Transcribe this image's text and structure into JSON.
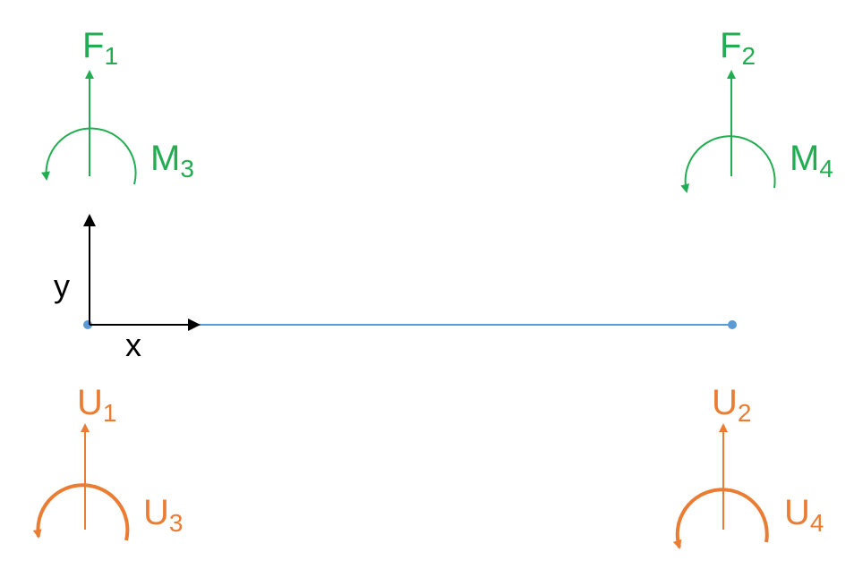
{
  "colors": {
    "force": "#22ad52",
    "displacement": "#ea7d33",
    "beam": "#5b9bd5",
    "axis": "#000000",
    "background": "#ffffff"
  },
  "axes": {
    "x_label": "x",
    "y_label": "y"
  },
  "labels": {
    "F1": {
      "base": "F",
      "sub": "1"
    },
    "F2": {
      "base": "F",
      "sub": "2"
    },
    "M3": {
      "base": "M",
      "sub": "3"
    },
    "M4": {
      "base": "M",
      "sub": "4"
    },
    "U1": {
      "base": "U",
      "sub": "1"
    },
    "U2": {
      "base": "U",
      "sub": "2"
    },
    "U3": {
      "base": "U",
      "sub": "3"
    },
    "U4": {
      "base": "U",
      "sub": "4"
    }
  }
}
